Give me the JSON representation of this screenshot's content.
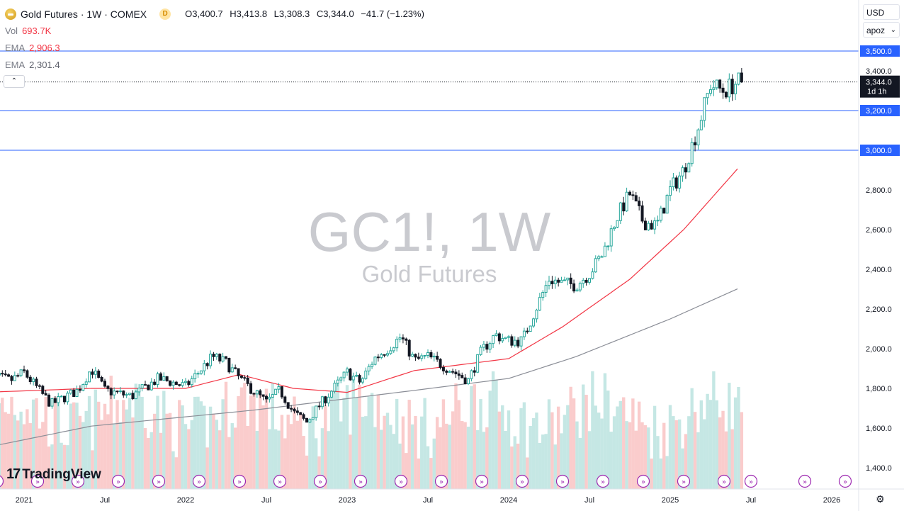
{
  "header": {
    "title": "Gold Futures · 1W · COMEX",
    "badge": "D",
    "ohlc": {
      "o_label": "O",
      "o": "3,400.7",
      "h_label": "H",
      "h": "3,413.8",
      "l_label": "L",
      "l": "3,308.3",
      "c_label": "C",
      "c": "3,344.0",
      "change": "−41.7 (−1.23%)"
    },
    "vol_label": "Vol",
    "vol_value": "693.7K",
    "ema1_label": "EMA",
    "ema1_value": "2,906.3",
    "ema2_label": "EMA",
    "ema2_value": "2,301.4",
    "collapse_glyph": "⌃"
  },
  "scale": {
    "currency": "USD",
    "mode": "apoz"
  },
  "watermark": {
    "symbol": "GC1!, 1W",
    "name": "Gold Futures"
  },
  "brand": {
    "name": "TradingView",
    "mark": "17"
  },
  "colors": {
    "up": "#26a69a",
    "down": "#131722",
    "ema_short": "#f23645",
    "ema_long": "#8a8d96",
    "hline": "#2962ff",
    "vol_up": "#b2dfdb",
    "vol_down": "#f8bbbb",
    "label_bg": "#131722"
  },
  "chart_data": {
    "type": "candlestick",
    "title": "Gold Futures · 1W · COMEX",
    "y_axis": {
      "min": 1400,
      "max": 3600,
      "ticks": [
        1400,
        1600,
        1800,
        2000,
        2200,
        2400,
        2600,
        2800,
        3000,
        3200,
        3400
      ],
      "tick_labels": [
        "1,400.0",
        "1,600.0",
        "1,800.0",
        "2,000.0",
        "2,200.0",
        "2,400.0",
        "2,600.0",
        "2,800.0",
        "3,000.0",
        "3,200.0",
        "3,400.0"
      ]
    },
    "x_axis": {
      "start": "2020-10",
      "end": "2026-05",
      "tick_labels": [
        {
          "t": "2021-01",
          "label": "2021"
        },
        {
          "t": "2021-07",
          "label": "Jul"
        },
        {
          "t": "2022-01",
          "label": "2022"
        },
        {
          "t": "2022-07",
          "label": "Jul"
        },
        {
          "t": "2023-01",
          "label": "2023"
        },
        {
          "t": "2023-07",
          "label": "Jul"
        },
        {
          "t": "2024-01",
          "label": "2024"
        },
        {
          "t": "2024-07",
          "label": "Jul"
        },
        {
          "t": "2025-01",
          "label": "2025"
        },
        {
          "t": "2025-07",
          "label": "Jul"
        },
        {
          "t": "2026-01",
          "label": "2026"
        }
      ]
    },
    "horizontal_lines": [
      {
        "value": 3500,
        "label": "3,500.0"
      },
      {
        "value": 3200,
        "label": "3,200.0"
      },
      {
        "value": 3000,
        "label": "3,000.0"
      }
    ],
    "last_price": {
      "value": 3344.0,
      "label": "3,344.0",
      "countdown": "1d 1h"
    },
    "close_path": [
      [
        "2020-10",
        1870
      ],
      [
        "2020-12",
        1840
      ],
      [
        "2021-01",
        1880
      ],
      [
        "2021-03",
        1720
      ],
      [
        "2021-05",
        1790
      ],
      [
        "2021-06",
        1900
      ],
      [
        "2021-07",
        1790
      ],
      [
        "2021-09",
        1760
      ],
      [
        "2021-11",
        1850
      ],
      [
        "2022-01",
        1810
      ],
      [
        "2022-03",
        1960
      ],
      [
        "2022-04",
        1930
      ],
      [
        "2022-05",
        1850
      ],
      [
        "2022-07",
        1730
      ],
      [
        "2022-08",
        1790
      ],
      [
        "2022-09",
        1680
      ],
      [
        "2022-10",
        1630
      ],
      [
        "2022-11",
        1720
      ],
      [
        "2022-12",
        1800
      ],
      [
        "2023-01",
        1880
      ],
      [
        "2023-02",
        1830
      ],
      [
        "2023-03",
        1950
      ],
      [
        "2023-04",
        2000
      ],
      [
        "2023-05",
        2060
      ],
      [
        "2023-06",
        1940
      ],
      [
        "2023-07",
        1960
      ],
      [
        "2023-08",
        1920
      ],
      [
        "2023-10",
        1840
      ],
      [
        "2023-11",
        1990
      ],
      [
        "2023-12",
        2070
      ],
      [
        "2024-01",
        2040
      ],
      [
        "2024-02",
        2040
      ],
      [
        "2024-03",
        2200
      ],
      [
        "2024-04",
        2350
      ],
      [
        "2024-05",
        2330
      ],
      [
        "2024-06",
        2320
      ],
      [
        "2024-07",
        2380
      ],
      [
        "2024-08",
        2480
      ],
      [
        "2024-09",
        2660
      ],
      [
        "2024-10",
        2780
      ],
      [
        "2024-11",
        2640
      ],
      [
        "2024-12",
        2620
      ],
      [
        "2025-01",
        2800
      ],
      [
        "2025-02",
        2900
      ],
      [
        "2025-03",
        3100
      ],
      [
        "2025-04",
        3330
      ],
      [
        "2025-05",
        3300
      ],
      [
        "2025-06",
        3344
      ]
    ],
    "ema_short_path": [
      [
        "2020-10",
        1780
      ],
      [
        "2021-06",
        1800
      ],
      [
        "2022-01",
        1800
      ],
      [
        "2022-05",
        1870
      ],
      [
        "2022-09",
        1800
      ],
      [
        "2023-01",
        1780
      ],
      [
        "2023-06",
        1890
      ],
      [
        "2024-01",
        1950
      ],
      [
        "2024-05",
        2110
      ],
      [
        "2024-10",
        2350
      ],
      [
        "2025-02",
        2600
      ],
      [
        "2025-06",
        2906.3
      ]
    ],
    "ema_long_path": [
      [
        "2020-10",
        1500
      ],
      [
        "2021-06",
        1610
      ],
      [
        "2022-06",
        1690
      ],
      [
        "2023-06",
        1790
      ],
      [
        "2024-01",
        1850
      ],
      [
        "2024-06",
        1960
      ],
      [
        "2025-01",
        2150
      ],
      [
        "2025-06",
        2301.4
      ]
    ],
    "volume_note": "Volume histogram along the bottom, last bar 693.7K"
  }
}
